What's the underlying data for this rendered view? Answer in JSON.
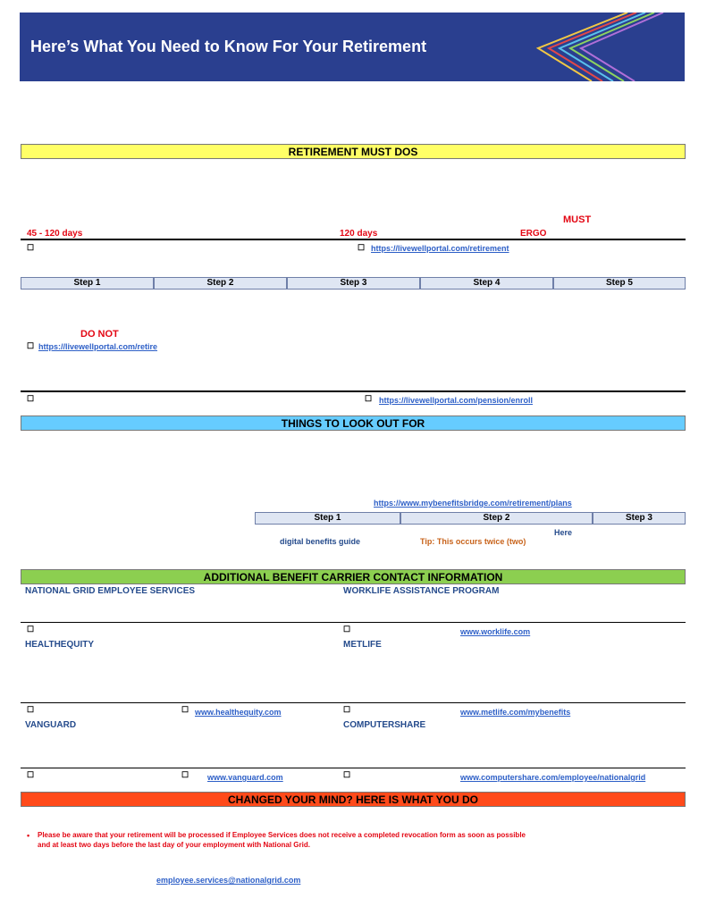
{
  "header": {
    "title": "Here’s What You Need to Know For Your Retirement"
  },
  "sections": {
    "must_dos": "RETIREMENT MUST DOS",
    "look_out": "THINGS TO LOOK OUT FOR",
    "carriers": "ADDITIONAL BENEFIT CARRIER CONTACT INFORMATION",
    "changed_mind": "CHANGED YOUR MIND? HERE IS WHAT YOU DO"
  },
  "must_dos": {
    "days_range": "45 - 120 days",
    "days_120": "120 days",
    "must": "MUST",
    "label_right": "ERGO",
    "link1": "https://livewellportal.com/retirement",
    "do_not": "DO NOT",
    "link2": "https://livewellportal.com/retire",
    "link3": "https://livewellportal.com/pension/enroll",
    "steps": [
      "Step 1",
      "Step 2",
      "Step 3",
      "Step 4",
      "Step 5"
    ]
  },
  "look_out": {
    "link": "https://www.mybenefitsbridge.com/retirement/plans",
    "steps": [
      "Step 1",
      "Step 2",
      "Step 3"
    ],
    "note1": "digital benefits guide",
    "note2": "Tip: This occurs twice (two)",
    "here": "Here"
  },
  "carriers": {
    "c1": "NATIONAL GRID EMPLOYEE SERVICES",
    "c2": "WORKLIFE ASSISTANCE PROGRAM",
    "c3": "HEALTHEQUITY",
    "c4": "METLIFE",
    "c5": "VANGUARD",
    "c6": "COMPUTERSHARE",
    "l1": "www.worklife.com",
    "l2": "www.healthequity.com",
    "l3": "www.metlife.com/mybenefits",
    "l4": "www.vanguard.com",
    "l5": "www.computershare.com/employee/nationalgrid"
  },
  "changed_mind": {
    "text1": "Please be aware that your retirement will be processed if Employee Services does not receive a completed revocation form as soon as possible",
    "text2": "and at least two days before the last day of your employment with National Grid.",
    "link": "employee.services@nationalgrid.com"
  },
  "colors": {
    "header": "#2a3f8f",
    "yellow": "#ffff66",
    "blue": "#66ccff",
    "green": "#8ccf50",
    "orange": "#ff4a1a",
    "red": "#e30613",
    "link": "#2d5fc7"
  }
}
